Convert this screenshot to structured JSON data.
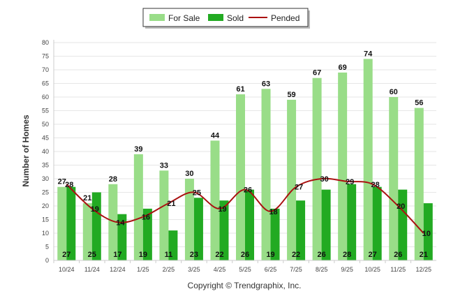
{
  "chart_data": {
    "type": "bar",
    "categories": [
      "10/24",
      "11/24",
      "12/24",
      "1/25",
      "2/25",
      "3/25",
      "4/25",
      "5/25",
      "6/25",
      "7/25",
      "8/25",
      "9/25",
      "10/25",
      "11/25",
      "12/25"
    ],
    "series": [
      {
        "name": "For Sale",
        "type": "bar",
        "color": "#99dd88",
        "values": [
          27,
          21,
          28,
          39,
          33,
          30,
          44,
          61,
          63,
          59,
          67,
          69,
          74,
          60,
          56
        ]
      },
      {
        "name": "Sold",
        "type": "bar",
        "color": "#22aa22",
        "values": [
          27,
          25,
          17,
          19,
          11,
          23,
          22,
          26,
          19,
          22,
          26,
          28,
          27,
          26,
          21
        ]
      },
      {
        "name": "Pended",
        "type": "line",
        "color": "#aa1111",
        "values": [
          28,
          19,
          14,
          16,
          21,
          25,
          19,
          26,
          18,
          27,
          30,
          29,
          28,
          20,
          10
        ]
      }
    ],
    "ylabel": "Number of Homes",
    "xlabel": "",
    "ylim": [
      0,
      80
    ],
    "yticks": [
      0,
      5,
      10,
      15,
      20,
      25,
      30,
      35,
      40,
      45,
      50,
      55,
      60,
      65,
      70,
      75,
      80
    ],
    "grid": true,
    "legend_position": "top-center"
  },
  "copyright": "Copyright © Trendgraphix, Inc."
}
